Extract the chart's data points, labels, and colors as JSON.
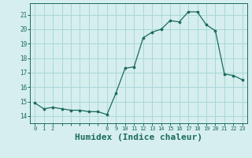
{
  "x": [
    0,
    1,
    2,
    3,
    4,
    5,
    6,
    7,
    8,
    9,
    10,
    11,
    12,
    13,
    14,
    15,
    16,
    17,
    18,
    19,
    20,
    21,
    22,
    23
  ],
  "y": [
    14.9,
    14.5,
    14.6,
    14.5,
    14.4,
    14.4,
    14.3,
    14.3,
    14.1,
    15.6,
    17.3,
    17.4,
    19.4,
    19.8,
    20.0,
    20.6,
    20.5,
    21.2,
    21.2,
    20.3,
    19.9,
    16.9,
    16.8,
    16.5
  ],
  "line_color": "#1a6b5a",
  "marker_color": "#1a6b5a",
  "bg_color": "#d6eeee",
  "grid_color": "#a8d8d8",
  "xlabel": "Humidex (Indice chaleur)",
  "xlabel_fontsize": 8,
  "ylim": [
    13.5,
    21.8
  ],
  "yticks": [
    14,
    15,
    16,
    17,
    18,
    19,
    20,
    21
  ],
  "xtick_labels": [
    "0",
    "1",
    "2",
    "",
    "",
    "",
    "",
    "",
    "8",
    "9",
    "10",
    "11",
    "12",
    "13",
    "14",
    "15",
    "16",
    "17",
    "18",
    "19",
    "20",
    "21",
    "22",
    "23"
  ],
  "xlim": [
    -0.5,
    23.5
  ]
}
